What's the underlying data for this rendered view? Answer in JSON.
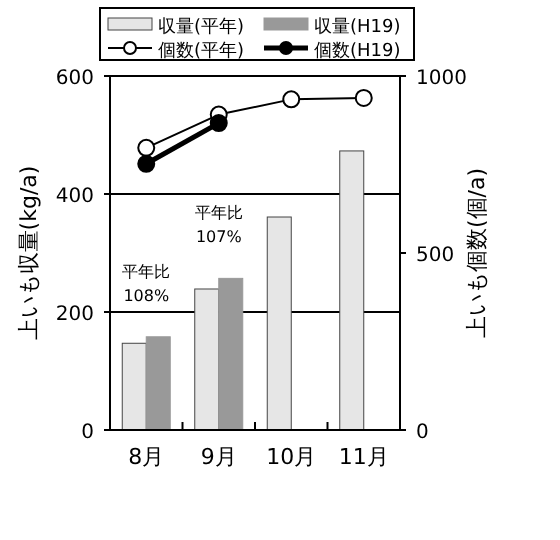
{
  "chart_data": {
    "type": "bar",
    "categories": [
      "8月",
      "9月",
      "10月",
      "11月"
    ],
    "ylabel": "上いも収量(kg/a)",
    "y2label": "上いも個数(個/a)",
    "ylim": [
      0,
      600
    ],
    "yticks": [
      0,
      200,
      400,
      600
    ],
    "y2lim": [
      0,
      1000
    ],
    "y2ticks": [
      0,
      500,
      1000
    ],
    "grid": "y",
    "legend": "top",
    "series": [
      {
        "name": "収量(平年)",
        "color": "#e6e6e6",
        "values": [
          147,
          239,
          361,
          473
        ]
      },
      {
        "name": "収量(H19)",
        "color": "#999999",
        "values": [
          158,
          257,
          null,
          null
        ]
      },
      {
        "name": "個数(平年)",
        "type": "line",
        "axis": "y2",
        "color": "#000000",
        "marker": "circle",
        "values": [
          797,
          891,
          934,
          938
        ]
      },
      {
        "name": "個数(H19)",
        "type": "line",
        "axis": "y2",
        "color": "#000000",
        "marker": "circle",
        "values": [
          752,
          867,
          null,
          null
        ]
      }
    ],
    "annotations": [
      {
        "text": "平年比\n108%",
        "x": "8月",
        "y": 158
      },
      {
        "text": "平年比\n107%",
        "x": "9月",
        "y": 257
      }
    ]
  }
}
